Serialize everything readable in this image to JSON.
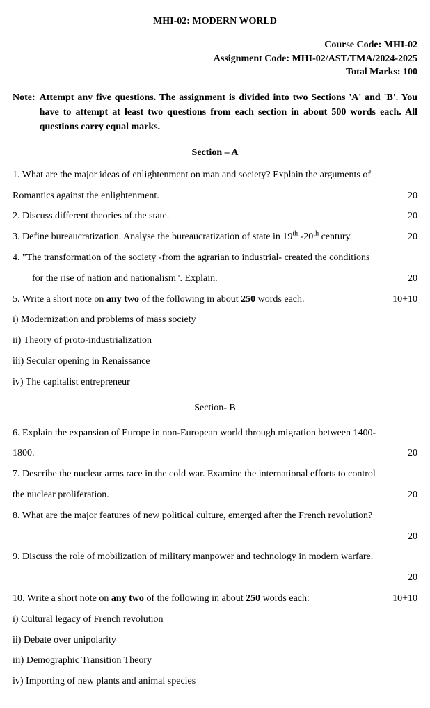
{
  "title": "MHI-02: MODERN WORLD",
  "header": {
    "course_code_label": "Course Code: MHI-02",
    "assignment_code_label": "Assignment Code:  MHI-02/AST/TMA/2024-2025",
    "total_marks_label": "Total Marks:   100"
  },
  "note": {
    "label": "Note:",
    "body": "Attempt any five questions. The assignment is divided into two Sections 'A' and 'B'. You have to attempt at least two questions from each section in about 500 words each.  All questions carry equal marks."
  },
  "sectionA": {
    "heading": "Section – A",
    "q1_a": "1. What are the major ideas of enlightenment on man and society? Explain the arguments of",
    "q1_b": "Romantics against the enlightenment.",
    "q1_marks": "20",
    "q2": "2. Discuss different theories of the state.",
    "q2_marks": "20",
    "q3_a": "3. Define bureaucratization. Analyse the bureaucratization of state in 19",
    "q3_sup1": "th",
    "q3_mid": " -20",
    "q3_sup2": "th",
    "q3_b": " century.",
    "q3_marks": "20",
    "q4_a": "4. \"The transformation of the society -from the agrarian to industrial- created the conditions",
    "q4_b": "for the rise of nation and nationalism\". Explain.",
    "q4_marks": "20",
    "q5_a": "5. Write a short note on ",
    "q5_bold1": "any two",
    "q5_b": " of the following in about ",
    "q5_bold2": "250",
    "q5_c": " words each.",
    "q5_marks": "10+10",
    "s1": "i) Modernization and problems of mass society",
    "s2": "ii) Theory of proto-industrialization",
    "s3": "iii) Secular opening in Renaissance",
    "s4": "iv) The capitalist entrepreneur"
  },
  "sectionB": {
    "heading": "Section- B",
    "q6_a": "6. Explain the expansion of Europe in non-European world through migration between 1400-",
    "q6_b": "1800.",
    "q6_marks": "20",
    "q7_a": "7. Describe the nuclear arms race in the cold war. Examine the international efforts to control",
    "q7_b": "the nuclear proliferation.",
    "q7_marks": "20",
    "q8": "8. What are the major features of new political culture, emerged after the French revolution?",
    "q8_marks": "20",
    "q9": "9. Discuss the role of mobilization of military manpower and technology in modern warfare.",
    "q9_marks": "20",
    "q10_a": "10. Write a short note on ",
    "q10_bold1": "any two",
    "q10_b": " of the following in about ",
    "q10_bold2": "250",
    "q10_c": " words each:",
    "q10_marks": "10+10",
    "s1": "i) Cultural legacy of French revolution",
    "s2": "ii) Debate over unipolarity",
    "s3": "iii) Demographic Transition Theory",
    "s4": "iv) Importing of new plants and animal species"
  }
}
